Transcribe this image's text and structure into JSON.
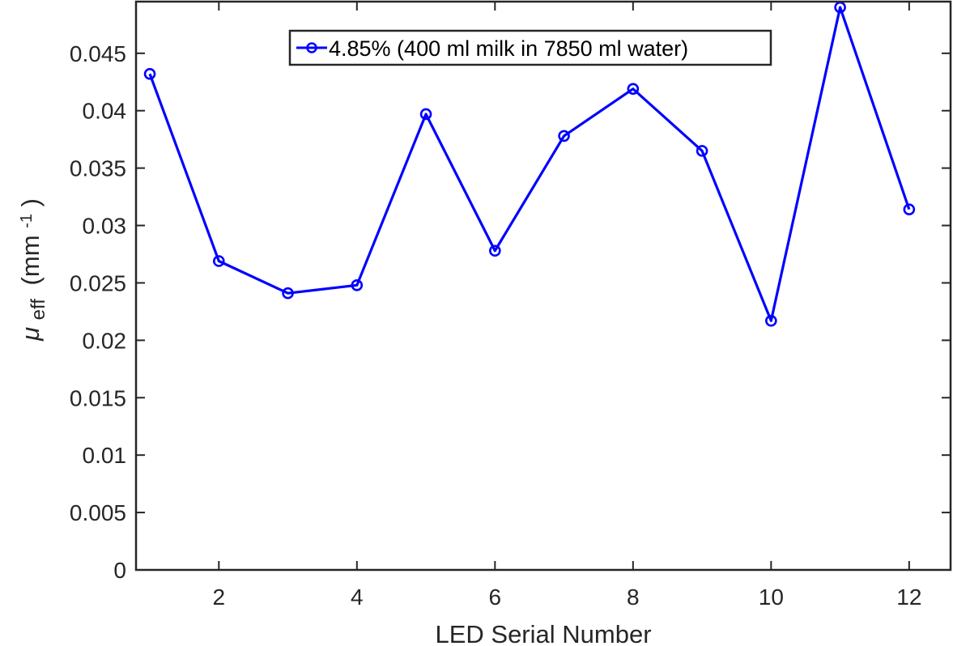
{
  "chart_data": {
    "type": "line",
    "title": "",
    "xlabel": "LED Serial Number",
    "ylabel": {
      "symbol": "μ",
      "subscript": "eff",
      "unit_prefix": "(mm",
      "unit_superscript": "-1",
      "unit_suffix": ")"
    },
    "xlim": [
      0.8,
      12.6
    ],
    "ylim": [
      0,
      0.0495
    ],
    "xticks": [
      2,
      4,
      6,
      8,
      10,
      12
    ],
    "xtick_labels": [
      "2",
      "4",
      "6",
      "8",
      "10",
      "12"
    ],
    "yticks": [
      0,
      0.005,
      0.01,
      0.015,
      0.02,
      0.025,
      0.03,
      0.035,
      0.04,
      0.045
    ],
    "ytick_labels": [
      "0",
      "0.005",
      "0.01",
      "0.015",
      "0.02",
      "0.025",
      "0.03",
      "0.035",
      "0.04",
      "0.045"
    ],
    "grid": false,
    "legend_position": "top-center",
    "series": [
      {
        "name": "4.85% (400 ml milk in 7850 ml water)",
        "color": "#0000ff",
        "marker": "circle",
        "x": [
          1,
          2,
          3,
          4,
          5,
          6,
          7,
          8,
          9,
          10,
          11,
          12
        ],
        "values": [
          0.0432,
          0.0269,
          0.0241,
          0.0248,
          0.0397,
          0.0278,
          0.0378,
          0.0419,
          0.0365,
          0.0217,
          0.049,
          0.0314
        ]
      }
    ]
  }
}
